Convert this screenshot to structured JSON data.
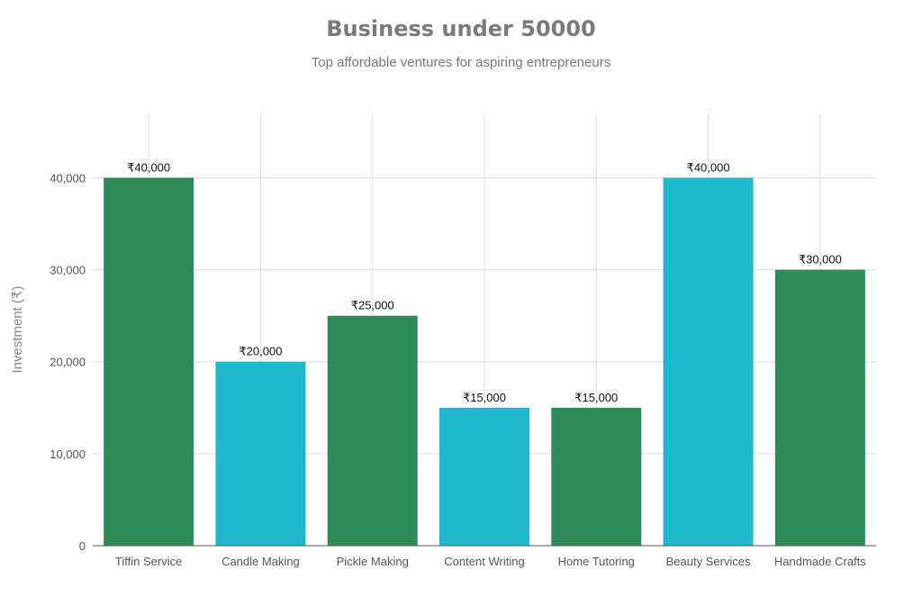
{
  "chart_data": {
    "type": "bar",
    "title": "Business under 50000",
    "subtitle": "Top affordable ventures for aspiring entrepreneurs",
    "xlabel": "",
    "ylabel": "Investment (₹)",
    "categories": [
      "Tiffin Service",
      "Candle Making",
      "Pickle Making",
      "Content Writing",
      "Home Tutoring",
      "Beauty Services",
      "Handmade Crafts"
    ],
    "values": [
      40000,
      20000,
      25000,
      15000,
      15000,
      40000,
      30000
    ],
    "value_labels": [
      "₹40,000",
      "₹20,000",
      "₹25,000",
      "₹15,000",
      "₹15,000",
      "₹40,000",
      "₹30,000"
    ],
    "bar_colors": [
      "#2e8b57",
      "#20b8cd",
      "#2e8b57",
      "#20b8cd",
      "#2e8b57",
      "#20b8cd",
      "#2e8b57"
    ],
    "ylim": [
      0,
      47000
    ],
    "yticks": [
      0,
      10000,
      20000,
      30000,
      40000
    ],
    "ytick_labels": [
      "0",
      "10,000",
      "20,000",
      "30,000",
      "40,000"
    ],
    "grid": true
  }
}
